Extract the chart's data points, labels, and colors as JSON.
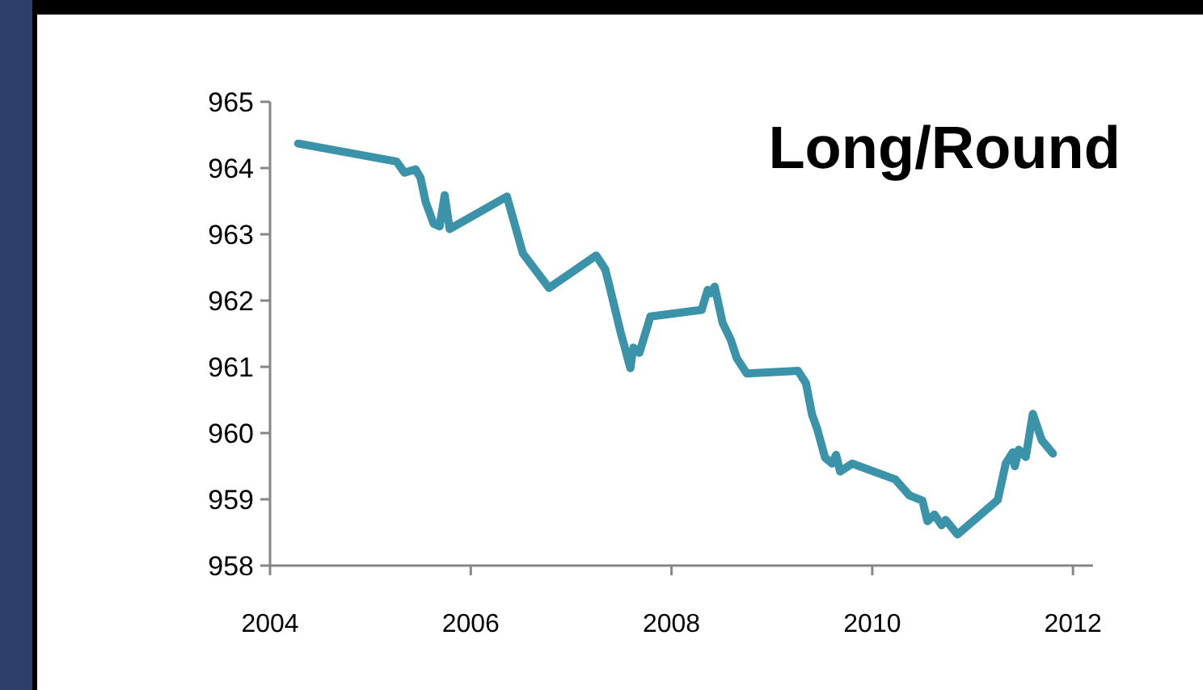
{
  "chart_data": {
    "type": "line",
    "title": "Long/Round",
    "x": [
      2004.28,
      2005.26,
      2005.34,
      2005.45,
      2005.5,
      2005.55,
      2005.63,
      2005.69,
      2005.74,
      2005.79,
      2006.36,
      2006.52,
      2006.66,
      2006.78,
      2007.25,
      2007.34,
      2007.38,
      2007.49,
      2007.59,
      2007.62,
      2007.68,
      2007.79,
      2008.3,
      2008.36,
      2008.39,
      2008.43,
      2008.51,
      2008.59,
      2008.65,
      2008.75,
      2009.26,
      2009.34,
      2009.4,
      2009.45,
      2009.53,
      2009.6,
      2009.64,
      2009.68,
      2009.8,
      2010.23,
      2010.37,
      2010.5,
      2010.55,
      2010.62,
      2010.69,
      2010.73,
      2010.85,
      2011.25,
      2011.33,
      2011.4,
      2011.42,
      2011.46,
      2011.53,
      2011.6,
      2011.69,
      2011.8
    ],
    "series": [
      {
        "color": "#3a93a8",
        "values": [
          964.37,
          964.1,
          963.93,
          963.98,
          963.85,
          963.49,
          963.16,
          963.12,
          963.59,
          963.08,
          963.57,
          962.71,
          962.43,
          962.19,
          962.68,
          962.47,
          962.23,
          961.54,
          960.98,
          961.29,
          961.21,
          961.76,
          961.86,
          962.16,
          962.11,
          962.21,
          961.66,
          961.41,
          961.13,
          960.9,
          960.94,
          960.75,
          960.28,
          960.07,
          959.63,
          959.54,
          959.67,
          959.42,
          959.54,
          959.3,
          959.06,
          958.98,
          958.67,
          958.77,
          958.61,
          958.69,
          958.47,
          958.99,
          959.54,
          959.71,
          959.5,
          959.75,
          959.64,
          960.29,
          959.89,
          959.69
        ]
      }
    ],
    "xlim": [
      2004,
      2012.2
    ],
    "xticks": [
      2004,
      2006,
      2008,
      2010,
      2012
    ],
    "ylim": [
      958,
      965
    ],
    "yticks": [
      958,
      959,
      960,
      961,
      962,
      963,
      964,
      965
    ],
    "grid": false,
    "marker": "none",
    "line_style": "solid"
  }
}
